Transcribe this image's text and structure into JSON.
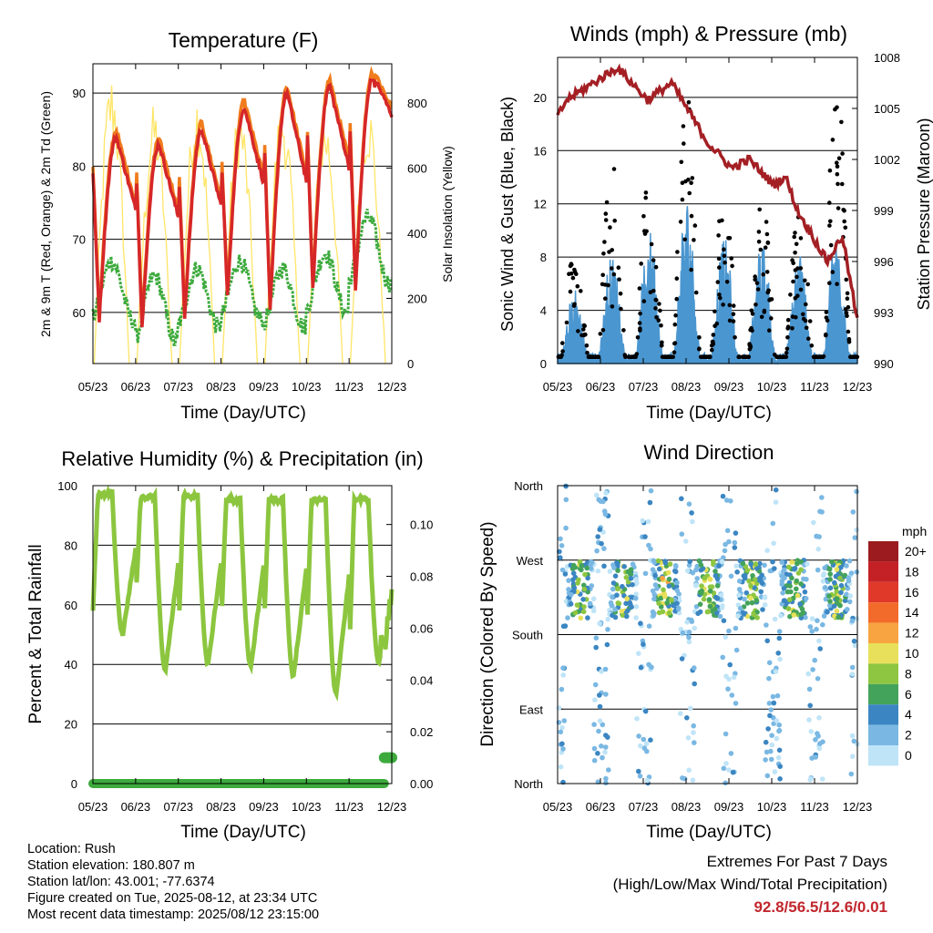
{
  "chart_data": [
    {
      "type": "line",
      "title": "Temperature (F)",
      "xlabel": "Time (Day/UTC)",
      "ylabel": "2m & 9m T (Red, Orange) & 2m Td (Green)",
      "y2label": "Solar Insolation (Yellow)",
      "categories": [
        "05/23",
        "06/23",
        "07/23",
        "08/23",
        "09/23",
        "10/23",
        "11/23",
        "12/23"
      ],
      "ylim": [
        53,
        94
      ],
      "yticks": [
        60,
        70,
        80,
        90
      ],
      "y2lim": [
        0,
        920
      ],
      "y2ticks": [
        0,
        200,
        400,
        600,
        800
      ],
      "highs": [
        84,
        83,
        85,
        88,
        90,
        91,
        92
      ],
      "lows": [
        59,
        58,
        59,
        62,
        60,
        63,
        63
      ],
      "dew_ranges": [
        [
          59,
          67
        ],
        [
          56,
          65
        ],
        [
          58,
          66
        ],
        [
          59,
          67
        ],
        [
          58,
          66
        ],
        [
          60,
          68
        ],
        [
          64,
          73
        ]
      ],
      "solar_peaks": [
        900,
        800,
        850,
        800,
        820,
        780,
        820
      ],
      "temp_start": 79,
      "temp_end": 87,
      "series": [
        {
          "name": "2m T",
          "color": "#d62728"
        },
        {
          "name": "9m T",
          "color": "#f07c1c"
        },
        {
          "name": "2m Td",
          "color": "#3daa3d"
        },
        {
          "name": "Solar Insolation",
          "color": "#ffe566"
        }
      ]
    },
    {
      "type": "line",
      "title": "Winds (mph) & Pressure (mb)",
      "xlabel": "Time (Day/UTC)",
      "ylabel": "Sonic Wind & Gust (Blue, Black)",
      "y2label": "Station Pressure (Maroon)",
      "categories": [
        "05/23",
        "06/23",
        "07/23",
        "08/23",
        "09/23",
        "10/23",
        "11/23",
        "12/23"
      ],
      "ylim": [
        0,
        23
      ],
      "yticks": [
        0,
        4,
        8,
        12,
        16,
        20
      ],
      "y2lim": [
        990,
        1008
      ],
      "y2ticks": [
        990,
        993,
        996,
        999,
        1002,
        1005,
        1008
      ],
      "wind_peaks": [
        5,
        8,
        10,
        12,
        9,
        9,
        8,
        10
      ],
      "gust_peaks": [
        8,
        15,
        14,
        20,
        13,
        12,
        11,
        21
      ],
      "pressure_x": [
        0,
        0.03,
        0.2,
        0.3,
        0.38,
        0.5,
        0.58,
        0.64,
        0.72,
        0.76,
        0.8,
        0.85,
        0.9,
        0.95,
        1.0
      ],
      "pressure_y": [
        1004.5,
        1005.5,
        1007.4,
        1005.5,
        1006.5,
        1003,
        1001.5,
        1002,
        1000.5,
        1001,
        999,
        997.5,
        996,
        997.5,
        992.5
      ],
      "series": [
        {
          "name": "Sonic Wind",
          "color": "#4a96d0"
        },
        {
          "name": "Gust",
          "color": "#000000"
        },
        {
          "name": "Station Pressure",
          "color": "#a31f24"
        }
      ]
    },
    {
      "type": "line",
      "title": "Relative Humidity (%) & Precipitation (in)",
      "xlabel": "Time (Day/UTC)",
      "ylabel": "Percent & Total Rainfall",
      "categories": [
        "05/23",
        "06/23",
        "07/23",
        "08/23",
        "09/23",
        "10/23",
        "11/23",
        "12/23"
      ],
      "ylim": [
        0,
        100
      ],
      "yticks": [
        0,
        20,
        40,
        60,
        80,
        100
      ],
      "y2lim": [
        0,
        0.115
      ],
      "y2ticks": [
        "0.00",
        "0.02",
        "0.04",
        "0.06",
        "0.08",
        "0.10"
      ],
      "rh_highs": [
        98,
        97,
        97,
        96,
        96,
        96,
        96
      ],
      "rh_lows": [
        50,
        38,
        40,
        39,
        36,
        30,
        40
      ],
      "rh_start": 58,
      "rh_end": 62,
      "precip_total_end": 0.01,
      "series": [
        {
          "name": "Relative Humidity",
          "color": "#8cc63f"
        },
        {
          "name": "Total Rainfall",
          "color": "#3daa3d"
        }
      ]
    },
    {
      "type": "scatter",
      "title": "Wind Direction",
      "xlabel": "Time (Day/UTC)",
      "ylabel": "Direction (Colored By Speed)",
      "categories": [
        "05/23",
        "06/23",
        "07/23",
        "08/23",
        "09/23",
        "10/23",
        "11/23",
        "12/23"
      ],
      "ylim": [
        0,
        360
      ],
      "yticks": [
        "North",
        "East",
        "South",
        "West",
        "North"
      ],
      "legend_title": "mph",
      "legend_labels": [
        "20+",
        "18",
        "16",
        "14",
        "12",
        "10",
        "8",
        "6",
        "4",
        "2",
        "0"
      ],
      "legend_colors": [
        "#9b1b1e",
        "#c42127",
        "#e0392a",
        "#f26b2a",
        "#f8a441",
        "#e8e05a",
        "#8ec641",
        "#44a35a",
        "#3b86c2",
        "#7ab8e3",
        "#bfe4f7"
      ],
      "legend": "right"
    }
  ],
  "info": {
    "location": "Location: Rush",
    "elevation": "Station elevation: 180.807 m",
    "latlon": "Station lat/lon: 43.001; -77.6374",
    "created": "Figure created on Tue, 2025-08-12, at 23:34 UTC",
    "recent": "Most recent data timestamp: 2025/08/12 23:15:00"
  },
  "extremes": {
    "line1": "Extremes For Past 7 Days",
    "line2": "(High/Low/Max Wind/Total Precipitation)",
    "values": "92.8/56.5/12.6/0.01"
  }
}
